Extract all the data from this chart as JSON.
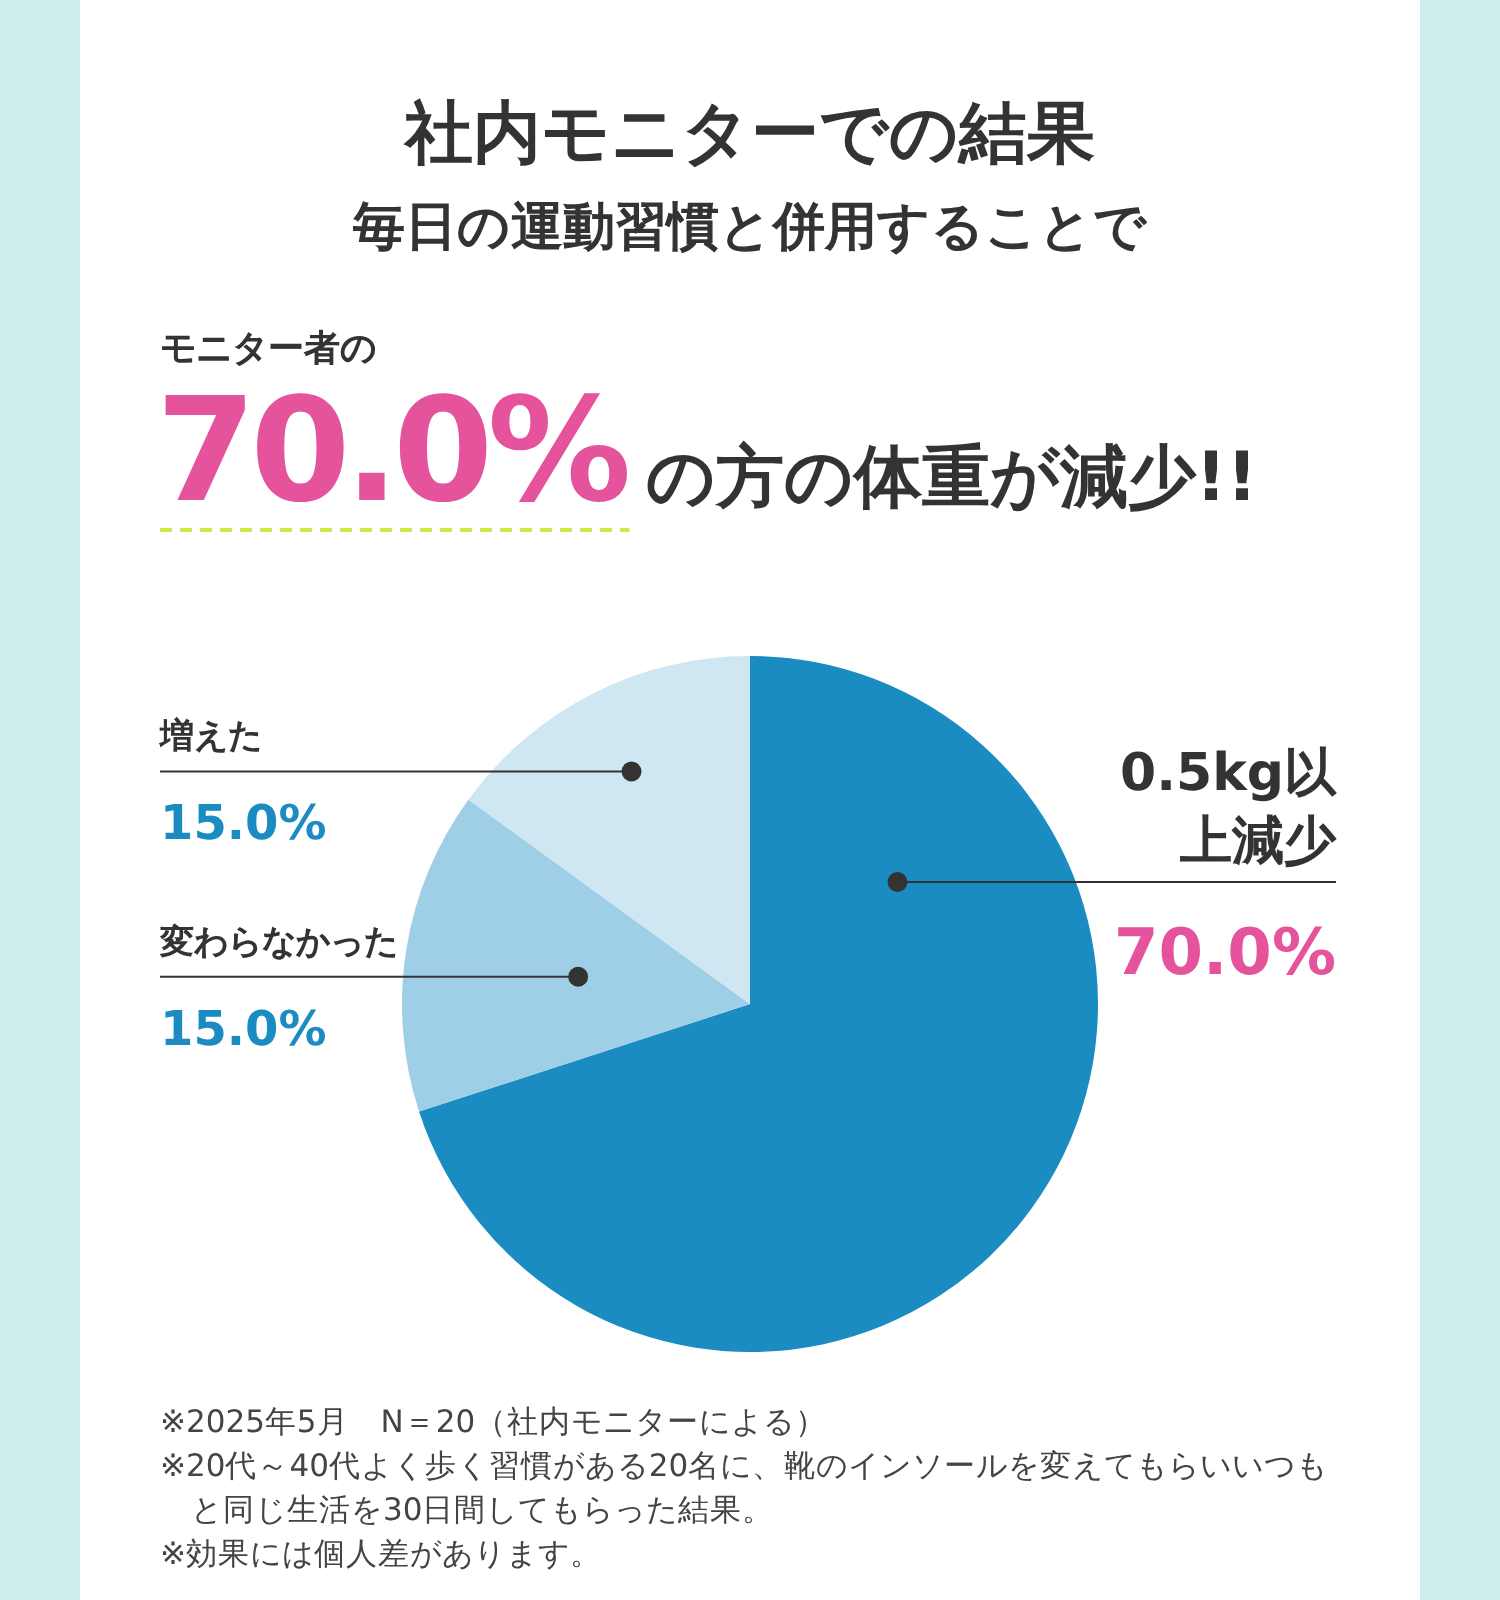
{
  "chart_data": {
    "type": "pie",
    "title": "社内モニターでの結果",
    "subtitle": "毎日の運動習慣と併用することで",
    "categories": [
      "0.5kg以上減少",
      "変わらなかった",
      "増えた"
    ],
    "values": [
      70,
      15,
      15
    ],
    "colors": [
      "#1a8cc2",
      "#9fcfe6",
      "#cfe6f3"
    ],
    "value_labels": [
      "70.0%",
      "15.0%",
      "15.0%"
    ],
    "annotations": [
      "モニター者の",
      "70.0%",
      "の方の体重が減少!!",
      "※2025年5月　N＝20（社内モニターによる）",
      "※20代～40代よく歩く習慣がある20名に、靴のインソールを変えてもらいいつもと同じ生活を30日間してもらった結果。",
      "※効果には個人差があります。"
    ]
  }
}
